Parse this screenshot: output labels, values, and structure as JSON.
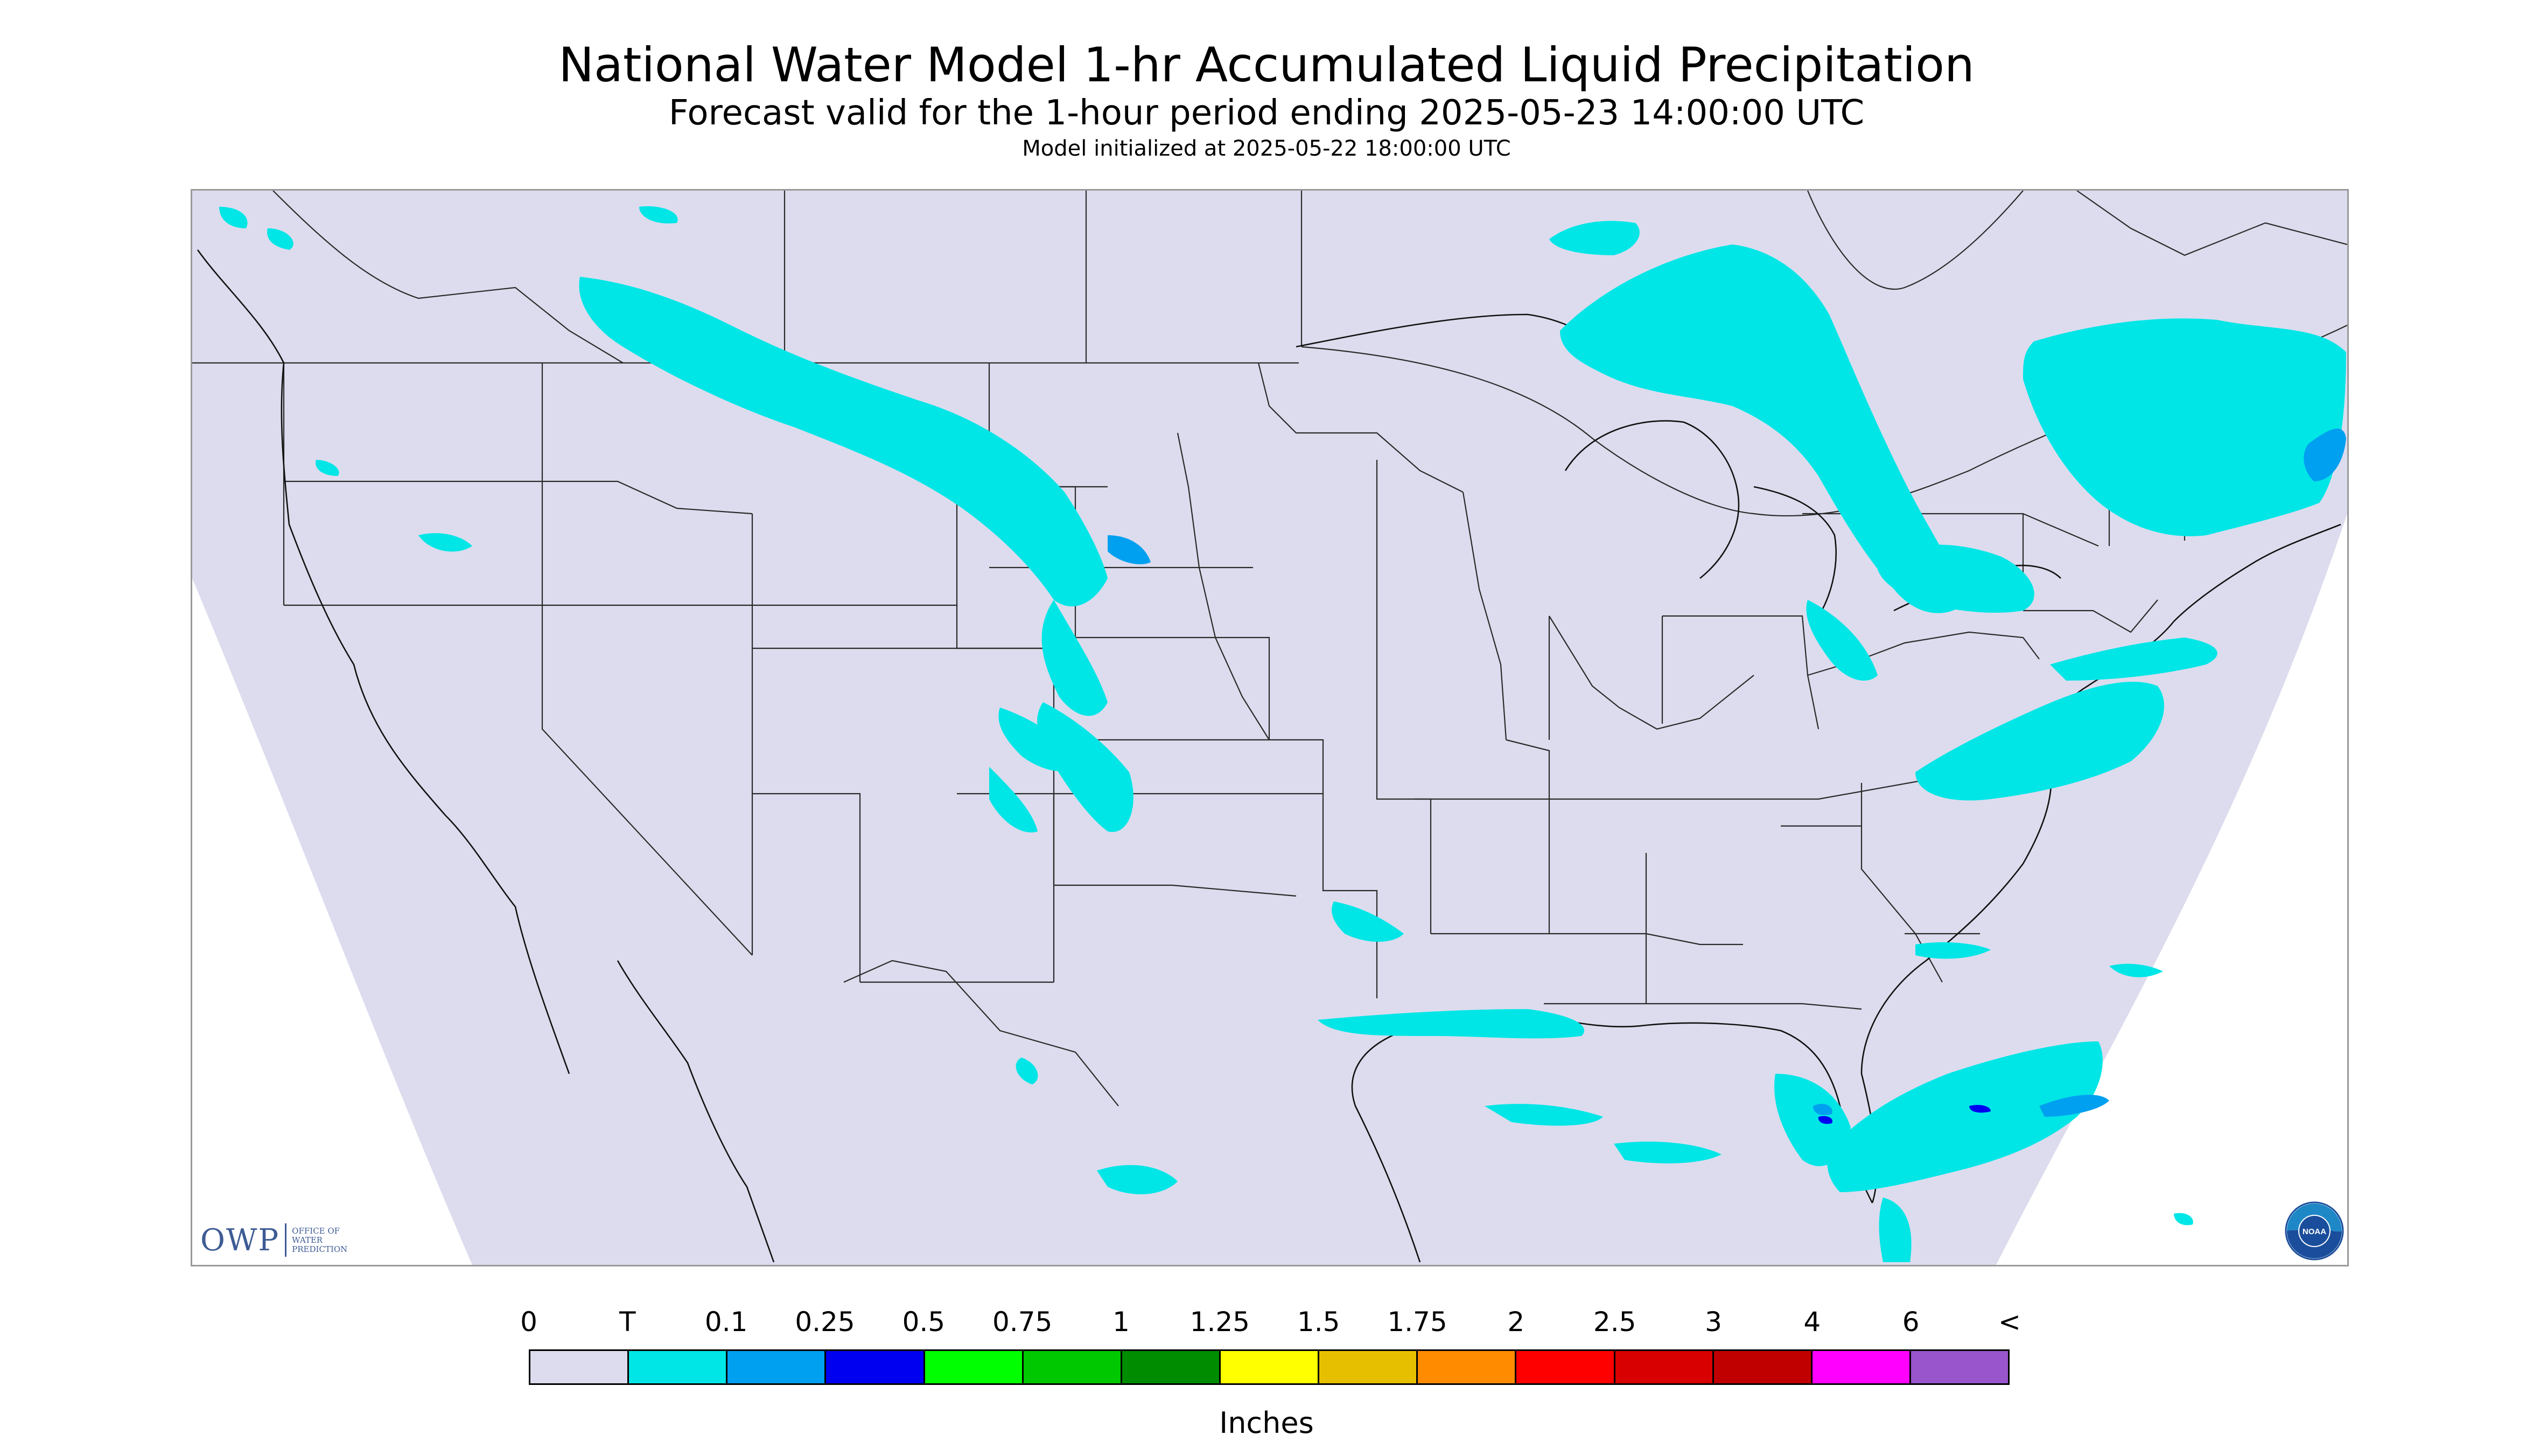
{
  "header": {
    "title": "National Water Model 1-hr Accumulated Liquid Precipitation",
    "subtitle": "Forecast valid for the 1-hour period ending 2025-05-23 14:00:00 UTC",
    "init_line": "Model initialized at 2025-05-22 18:00:00 UTC"
  },
  "colors": {
    "domain_fill": "#dcdcee",
    "border_lines": "#1e1e1e",
    "trace": "#00e6e6",
    "light_blue": "#00a0f0",
    "dark_blue": "#0000f0"
  },
  "logos": {
    "owp_main": "OWP",
    "owp_sub": [
      "OFFICE OF",
      "WATER",
      "PREDICTION"
    ],
    "noaa_text": "NOAA"
  },
  "legend": {
    "labels": [
      "0",
      "T",
      "0.1",
      "0.25",
      "0.5",
      "0.75",
      "1",
      "1.25",
      "1.5",
      "1.75",
      "2",
      "2.5",
      "3",
      "4",
      "6",
      "<"
    ],
    "colors": [
      "#dcdcee",
      "#00e6e6",
      "#00a0f0",
      "#0000f0",
      "#00ff00",
      "#00c800",
      "#008c00",
      "#ffff00",
      "#e6c000",
      "#ff8c00",
      "#ff0000",
      "#d80000",
      "#c00000",
      "#ff00ff",
      "#9955cc"
    ],
    "units": "Inches"
  }
}
